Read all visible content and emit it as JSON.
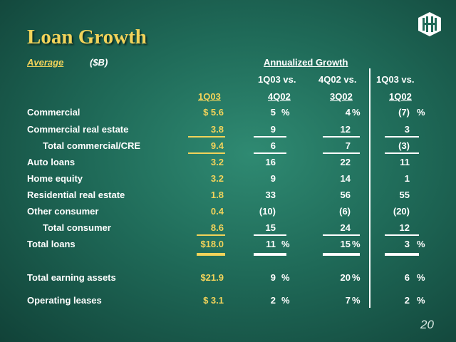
{
  "title": "Loan Growth",
  "subtitle_left": "Average",
  "subtitle_unit": "($B)",
  "header": {
    "annualized": "Annualized Growth",
    "col1_top": "1Q03 vs.",
    "col3_top": "1Q03 vs.",
    "col0": "1Q03",
    "col1": "4Q02",
    "col2_top": "4Q02 vs.",
    "col2": "3Q02",
    "col3": "1Q02"
  },
  "rows": [
    {
      "label": "Commercial",
      "v0": "$  5.6",
      "v1": "5",
      "v1s": "%",
      "v2": "4",
      "v2s": "%",
      "v3": "(7)",
      "v3s": "%"
    },
    {
      "label": "Commercial real estate",
      "v0": "3.8",
      "v1": "9",
      "v2": "12",
      "v3": "3"
    },
    {
      "label": "Total commercial/CRE",
      "v0": "9.4",
      "v1": "6",
      "v2": "7",
      "v3": "(3)"
    },
    {
      "label": "Auto loans",
      "v0": "3.2",
      "v1": "16",
      "v2": "22",
      "v3": "11"
    },
    {
      "label": "Home equity",
      "v0": "3.2",
      "v1": "9",
      "v2": "14",
      "v3": "1"
    },
    {
      "label": "Residential real estate",
      "v0": "1.8",
      "v1": "33",
      "v2": "56",
      "v3": "55"
    },
    {
      "label": "Other consumer",
      "v0": "0.4",
      "v1": "(10)",
      "v2": "(6)",
      "v3": "(20)"
    },
    {
      "label": "Total consumer",
      "v0": "8.6",
      "v1": "15",
      "v2": "24",
      "v3": "12"
    },
    {
      "label": "Total loans",
      "v0": "$18.0",
      "v1": "11",
      "v1s": "%",
      "v2": "15",
      "v2s": "%",
      "v3": "3",
      "v3s": "%"
    },
    {
      "label": "Total earning assets",
      "v0": "$21.9",
      "v1": "9",
      "v1s": "%",
      "v2": "20",
      "v2s": "%",
      "v3": "6",
      "v3s": "%"
    },
    {
      "label": "Operating leases",
      "v0": "$  3.1",
      "v1": "2",
      "v1s": "%",
      "v2": "7",
      "v2s": "%",
      "v3": "2",
      "v3s": "%"
    }
  ],
  "page_number": "20",
  "logo_icon": "huntington-logo-icon"
}
